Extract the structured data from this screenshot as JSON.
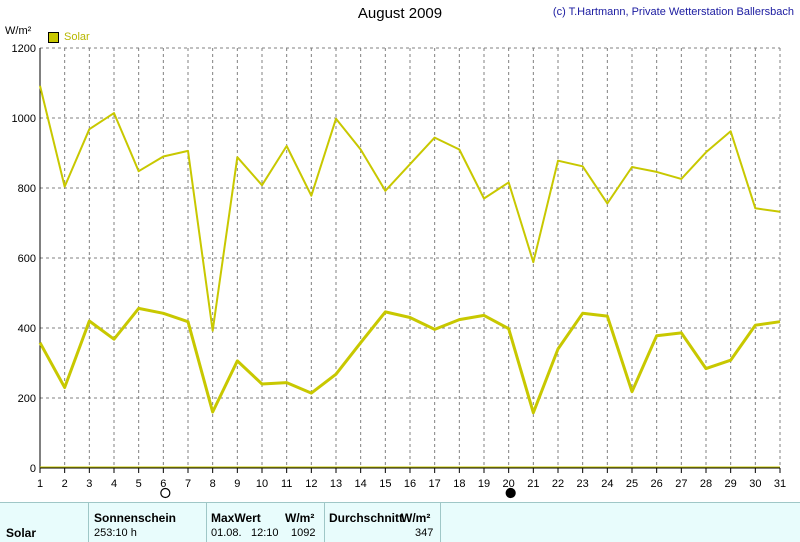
{
  "header": {
    "title": "August 2009",
    "credit": "(c) T.Hartmann, Private Wetterstation Ballersbach",
    "unit": "W/m²"
  },
  "legend": {
    "label": "Solar"
  },
  "colors": {
    "max_line": "#c8c800",
    "avg_line": "#c8c800",
    "grid": "#808080"
  },
  "chart_data": {
    "type": "line",
    "x": [
      1,
      2,
      3,
      4,
      5,
      6,
      7,
      8,
      9,
      10,
      11,
      12,
      13,
      14,
      15,
      16,
      17,
      18,
      19,
      20,
      21,
      22,
      23,
      24,
      25,
      26,
      27,
      28,
      29,
      30,
      31
    ],
    "series": [
      {
        "name": "Solar",
        "values": [
          1092,
          804,
          968,
          1014,
          848,
          890,
          906,
          392,
          888,
          808,
          920,
          778,
          998,
          910,
          792,
          868,
          944,
          910,
          770,
          816,
          588,
          878,
          862,
          756,
          860,
          846,
          826,
          902,
          962,
          742,
          732
        ]
      },
      {
        "values": [
          358,
          230,
          420,
          368,
          456,
          442,
          418,
          160,
          306,
          240,
          244,
          214,
          268,
          358,
          446,
          430,
          396,
          424,
          436,
          398,
          158,
          340,
          442,
          434,
          218,
          378,
          386,
          284,
          308,
          408,
          418
        ]
      }
    ],
    "xlim": [
      1,
      31
    ],
    "ylim": [
      0,
      1200
    ],
    "yticks": [
      0,
      200,
      400,
      600,
      800,
      1000,
      1200
    ],
    "moon_phases": [
      {
        "day": 6,
        "phase": "full"
      },
      {
        "day": 20,
        "phase": "new"
      }
    ],
    "grid": true,
    "legend_position": "top-left"
  },
  "summary": {
    "row_label": "Solar",
    "sunshine": {
      "header": "Sonnenschein",
      "value": "253:10 h"
    },
    "max": {
      "header": "MaxWert",
      "unit": "W/m²",
      "date": "01.08.",
      "time": "12:10",
      "value": "1092"
    },
    "avg": {
      "header": "Durchschnitt",
      "unit": "W/m²",
      "value": "347"
    }
  }
}
